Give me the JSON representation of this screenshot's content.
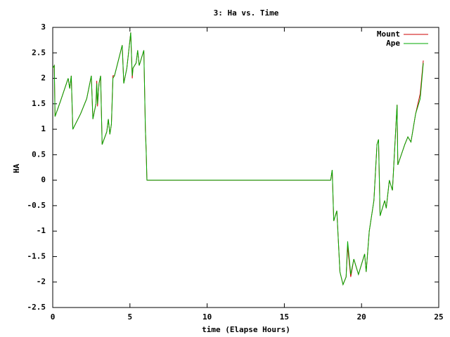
{
  "chart_data": {
    "type": "line",
    "title": "3: Ha vs. Time",
    "x_label": "time (Elapse Hours)",
    "y_label": "HA",
    "x": [
      0,
      0.1,
      0.15,
      0.5,
      1.0,
      1.1,
      1.2,
      1.3,
      1.8,
      2.2,
      2.5,
      2.6,
      2.8,
      2.85,
      2.9,
      3.0,
      3.1,
      3.2,
      3.5,
      3.6,
      3.7,
      3.8,
      3.9,
      4.0,
      4.5,
      4.6,
      4.8,
      5.0,
      5.05,
      5.15,
      5.2,
      5.4,
      5.5,
      5.6,
      5.9,
      6.0,
      6.05,
      6.1,
      18.0,
      18.1,
      18.2,
      18.4,
      18.6,
      18.8,
      19.0,
      19.1,
      19.3,
      19.5,
      19.8,
      20.2,
      20.3,
      20.5,
      20.8,
      21.0,
      21.1,
      21.2,
      21.5,
      21.6,
      21.8,
      22.0,
      22.3,
      22.35,
      22.8,
      23.0,
      23.2,
      23.5,
      23.8,
      24.0
    ],
    "series": [
      {
        "name": "Mount",
        "color": "#cc0000",
        "values": [
          2.2,
          2.25,
          1.25,
          1.55,
          2.0,
          1.8,
          2.05,
          1.0,
          1.3,
          1.6,
          2.05,
          1.2,
          1.5,
          1.95,
          1.45,
          1.9,
          2.05,
          0.7,
          0.95,
          1.2,
          0.9,
          1.1,
          2.05,
          2.05,
          2.65,
          1.9,
          2.2,
          2.75,
          2.9,
          2.0,
          2.2,
          2.3,
          2.55,
          2.25,
          2.55,
          1.0,
          0.6,
          0,
          0,
          0.2,
          -0.8,
          -0.6,
          -1.8,
          -2.05,
          -1.9,
          -1.3,
          -1.9,
          -1.55,
          -1.85,
          -1.45,
          -1.8,
          -1.0,
          -0.4,
          0.7,
          0.8,
          -0.7,
          -0.4,
          -0.55,
          0.0,
          -0.2,
          1.48,
          0.3,
          0.7,
          0.85,
          0.75,
          1.3,
          1.7,
          2.35
        ]
      },
      {
        "name": "Ape",
        "color": "#00aa00",
        "values": [
          2.2,
          2.25,
          1.25,
          1.55,
          2.0,
          1.8,
          2.05,
          1.0,
          1.3,
          1.6,
          2.05,
          1.2,
          1.5,
          1.9,
          1.5,
          1.9,
          2.05,
          0.7,
          0.95,
          1.2,
          0.9,
          1.1,
          2.0,
          2.05,
          2.65,
          1.9,
          2.2,
          2.75,
          2.9,
          2.05,
          2.2,
          2.3,
          2.55,
          2.25,
          2.55,
          1.0,
          0.6,
          0,
          0,
          0.2,
          -0.8,
          -0.6,
          -1.8,
          -2.05,
          -1.9,
          -1.2,
          -1.85,
          -1.55,
          -1.85,
          -1.45,
          -1.8,
          -1.0,
          -0.4,
          0.7,
          0.8,
          -0.7,
          -0.4,
          -0.55,
          0.0,
          -0.2,
          1.48,
          0.3,
          0.7,
          0.85,
          0.75,
          1.3,
          1.6,
          2.3
        ]
      }
    ],
    "xlim": [
      0,
      25
    ],
    "xticks": [
      0,
      5,
      10,
      15,
      20,
      25
    ],
    "ylim": [
      -2.5,
      3
    ],
    "yticks": [
      -2.5,
      -2,
      -1.5,
      -1,
      -0.5,
      0,
      0.5,
      1,
      1.5,
      2,
      2.5,
      3
    ],
    "legend": "top-right"
  }
}
